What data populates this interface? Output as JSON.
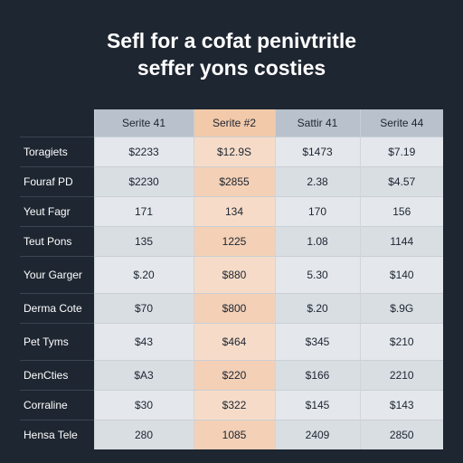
{
  "title": {
    "line1": "Sefl for a cofat penivtritle",
    "line2": "seffer yons costies"
  },
  "table": {
    "headers": [
      "Serite 41",
      "Serite #2",
      "Sattir 41",
      "Serite 44"
    ],
    "rows": [
      {
        "label": "Toragiets",
        "values": [
          "$2233",
          "$12.9S",
          "$1473",
          "$7.19"
        ]
      },
      {
        "label": "Fouraf PD",
        "values": [
          "$2230",
          "$2855",
          "2.38",
          "$4.57"
        ]
      },
      {
        "label": "Yeut Fagr",
        "values": [
          "171",
          "134",
          "170",
          "156"
        ]
      },
      {
        "label": "Teut Pons",
        "values": [
          "135",
          "1225",
          "1.08",
          "1144"
        ]
      },
      {
        "label": "Your Garger",
        "values": [
          "$.20",
          "$880",
          "5.30",
          "$140"
        ]
      },
      {
        "label": "Derma Cote",
        "values": [
          "$70",
          "$800",
          "$.20",
          "$.9G"
        ]
      },
      {
        "label": "Pet Tyms",
        "values": [
          "$43",
          "$464",
          "$345",
          "$210"
        ]
      },
      {
        "label": "DenCties",
        "values": [
          "$A3",
          "$220",
          "$166",
          "2210"
        ]
      },
      {
        "label": "Corraline",
        "values": [
          "$30",
          "$322",
          "$145",
          "$143"
        ]
      },
      {
        "label": "Hensa Tele",
        "values": [
          "280",
          "1085",
          "2409",
          "2850"
        ]
      }
    ]
  }
}
